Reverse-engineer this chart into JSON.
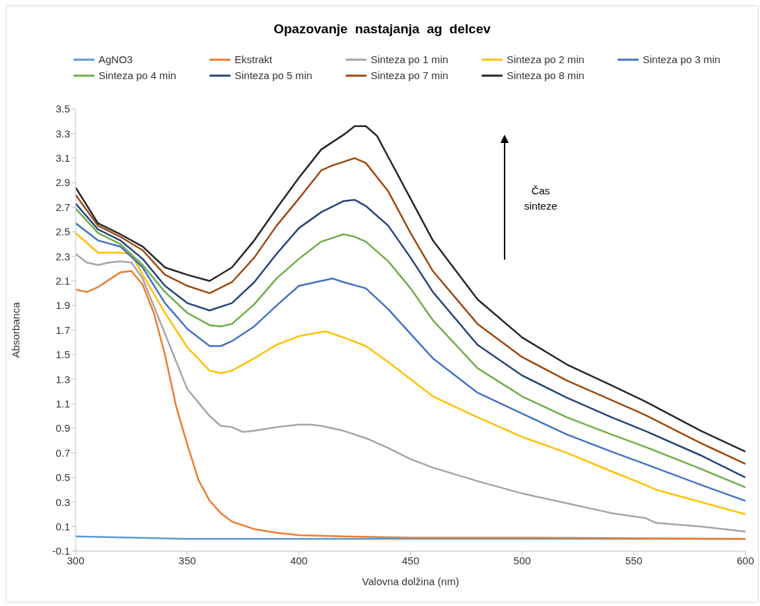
{
  "chart_data": {
    "type": "line",
    "title": "Opazovanje  nastajanja  ag  delcev",
    "xlabel": "Valovna dolžina (nm)",
    "ylabel": "Absorbanca",
    "annotations": [
      "Čas sinteze"
    ],
    "legend": "top",
    "marker": "none",
    "line_style": "solid",
    "xlim": [
      300,
      600
    ],
    "xticks": [
      300,
      350,
      400,
      450,
      500,
      550,
      600
    ],
    "ylim": [
      -0.1,
      3.5
    ],
    "yticks": [
      -0.1,
      0.1,
      0.3,
      0.5,
      0.7,
      0.9,
      1.1,
      1.3,
      1.5,
      1.7,
      1.9,
      2.1,
      2.3,
      2.5,
      2.7,
      2.9,
      3.1,
      3.3,
      3.5
    ],
    "series": [
      {
        "name": "AgNO3",
        "color": "#5b9bd5",
        "x": [
          300,
          350,
          400,
          600
        ],
        "values": [
          0.02,
          0.0,
          0.0,
          0.0
        ]
      },
      {
        "name": "Ekstrakt",
        "color": "#ed7d31",
        "x": [
          300,
          305,
          310,
          320,
          325,
          330,
          335,
          340,
          345,
          350,
          355,
          360,
          365,
          370,
          380,
          390,
          400,
          420,
          450,
          500,
          600
        ],
        "values": [
          2.03,
          2.01,
          2.05,
          2.17,
          2.18,
          2.07,
          1.84,
          1.5,
          1.08,
          0.77,
          0.48,
          0.31,
          0.21,
          0.14,
          0.08,
          0.05,
          0.03,
          0.02,
          0.01,
          0.01,
          0.0
        ]
      },
      {
        "name": "Sinteza po 1 min",
        "color": "#a5a5a5",
        "x": [
          300,
          305,
          310,
          315,
          320,
          325,
          330,
          340,
          350,
          360,
          365,
          370,
          375,
          380,
          390,
          400,
          405,
          410,
          420,
          430,
          440,
          450,
          460,
          480,
          500,
          520,
          540,
          555,
          560,
          580,
          600
        ],
        "values": [
          2.32,
          2.25,
          2.23,
          2.25,
          2.26,
          2.25,
          2.12,
          1.67,
          1.22,
          1.0,
          0.92,
          0.91,
          0.87,
          0.88,
          0.91,
          0.93,
          0.93,
          0.92,
          0.88,
          0.82,
          0.74,
          0.65,
          0.58,
          0.47,
          0.37,
          0.29,
          0.21,
          0.17,
          0.13,
          0.1,
          0.06
        ]
      },
      {
        "name": "Sinteza po 2 min",
        "color": "#ffc000",
        "x": [
          300,
          310,
          320,
          325,
          330,
          340,
          350,
          360,
          365,
          370,
          380,
          390,
          400,
          412,
          420,
          430,
          440,
          450,
          460,
          480,
          500,
          520,
          540,
          555,
          560,
          580,
          600
        ],
        "values": [
          2.49,
          2.33,
          2.33,
          2.32,
          2.15,
          1.84,
          1.56,
          1.37,
          1.35,
          1.37,
          1.47,
          1.58,
          1.65,
          1.69,
          1.64,
          1.57,
          1.44,
          1.3,
          1.16,
          0.99,
          0.83,
          0.7,
          0.55,
          0.44,
          0.4,
          0.3,
          0.2
        ]
      },
      {
        "name": "Sinteza po 3 min",
        "color": "#4472c4",
        "x": [
          300,
          310,
          320,
          330,
          340,
          350,
          360,
          365,
          370,
          380,
          390,
          400,
          410,
          415,
          420,
          430,
          440,
          450,
          460,
          480,
          500,
          520,
          540,
          555,
          580,
          600
        ],
        "values": [
          2.57,
          2.43,
          2.38,
          2.21,
          1.92,
          1.71,
          1.57,
          1.57,
          1.61,
          1.73,
          1.9,
          2.06,
          2.1,
          2.12,
          2.09,
          2.04,
          1.87,
          1.67,
          1.47,
          1.19,
          1.02,
          0.85,
          0.71,
          0.61,
          0.44,
          0.31
        ]
      },
      {
        "name": "Sinteza po 4 min",
        "color": "#70ad47",
        "x": [
          300,
          310,
          320,
          330,
          340,
          350,
          360,
          365,
          370,
          380,
          390,
          400,
          410,
          420,
          425,
          430,
          440,
          450,
          460,
          480,
          500,
          520,
          540,
          555,
          580,
          600
        ],
        "values": [
          2.69,
          2.49,
          2.4,
          2.23,
          2.01,
          1.84,
          1.74,
          1.73,
          1.75,
          1.91,
          2.12,
          2.28,
          2.42,
          2.48,
          2.46,
          2.42,
          2.26,
          2.04,
          1.78,
          1.39,
          1.16,
          0.99,
          0.85,
          0.75,
          0.57,
          0.42
        ]
      },
      {
        "name": "Sinteza po 5 min",
        "color": "#264478",
        "x": [
          300,
          310,
          320,
          330,
          340,
          350,
          360,
          370,
          380,
          390,
          400,
          410,
          420,
          425,
          430,
          440,
          450,
          460,
          480,
          500,
          520,
          540,
          555,
          580,
          600
        ],
        "values": [
          2.73,
          2.52,
          2.43,
          2.28,
          2.06,
          1.92,
          1.86,
          1.92,
          2.09,
          2.32,
          2.53,
          2.66,
          2.75,
          2.76,
          2.71,
          2.55,
          2.29,
          2.01,
          1.58,
          1.33,
          1.15,
          0.99,
          0.88,
          0.68,
          0.5
        ]
      },
      {
        "name": "Sinteza po 7 min",
        "color": "#9e480e",
        "x": [
          300,
          310,
          320,
          330,
          340,
          350,
          360,
          370,
          380,
          390,
          400,
          410,
          415,
          420,
          425,
          430,
          440,
          450,
          460,
          480,
          500,
          520,
          540,
          555,
          580,
          600
        ],
        "values": [
          2.8,
          2.55,
          2.46,
          2.35,
          2.15,
          2.06,
          2.0,
          2.09,
          2.29,
          2.55,
          2.77,
          3.0,
          3.04,
          3.07,
          3.1,
          3.06,
          2.83,
          2.49,
          2.18,
          1.75,
          1.48,
          1.29,
          1.13,
          1.01,
          0.78,
          0.61
        ]
      },
      {
        "name": "Sinteza po 8 min",
        "color": "#262626",
        "x": [
          300,
          310,
          320,
          330,
          340,
          350,
          360,
          370,
          380,
          390,
          400,
          410,
          420,
          425,
          430,
          435,
          440,
          450,
          460,
          480,
          500,
          520,
          540,
          555,
          580,
          600
        ],
        "values": [
          2.86,
          2.57,
          2.48,
          2.38,
          2.21,
          2.15,
          2.1,
          2.21,
          2.43,
          2.69,
          2.94,
          3.17,
          3.29,
          3.36,
          3.36,
          3.28,
          3.11,
          2.77,
          2.43,
          1.95,
          1.64,
          1.42,
          1.25,
          1.12,
          0.88,
          0.71
        ]
      }
    ]
  }
}
